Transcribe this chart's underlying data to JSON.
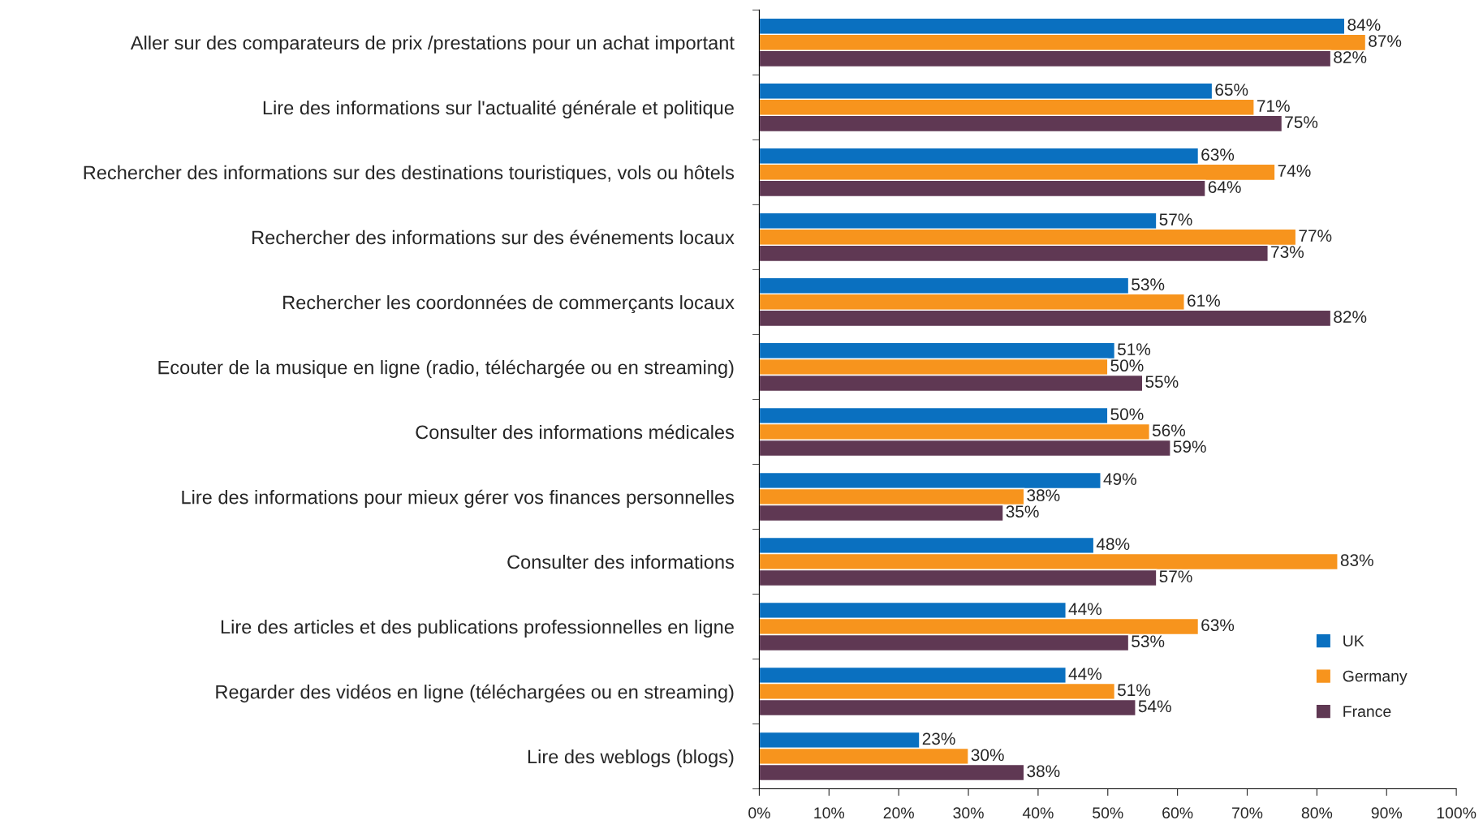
{
  "chart_data": {
    "type": "bar",
    "orientation": "horizontal",
    "categories": [
      "Aller sur des comparateurs de prix /prestations pour un achat important",
      "Lire des informations sur l'actualité générale et politique",
      "Rechercher des informations sur des destinations touristiques, vols ou hôtels",
      "Rechercher des informations sur des événements locaux",
      "Rechercher les coordonnées de commerçants locaux",
      "Ecouter de la musique en ligne (radio, téléchargée ou en streaming)",
      "Consulter des informations médicales",
      "Lire des informations pour mieux gérer vos finances personnelles",
      "Consulter des informations",
      "Lire des articles et des publications professionnelles en ligne",
      "Regarder des vidéos en ligne (téléchargées ou en streaming)",
      "Lire des weblogs (blogs)"
    ],
    "series": [
      {
        "name": "UK",
        "color": "#0a70c0",
        "values": [
          84,
          65,
          63,
          57,
          53,
          51,
          50,
          49,
          48,
          44,
          44,
          23
        ],
        "value_labels": [
          "84%",
          "65%",
          "63%",
          "57%",
          "53%",
          "51%",
          "50%",
          "49%",
          "48%",
          "44%",
          "44%",
          "23%"
        ]
      },
      {
        "name": "Germany",
        "color": "#f7941d",
        "values": [
          87,
          71,
          74,
          77,
          61,
          50,
          56,
          38,
          83,
          63,
          51,
          30
        ],
        "value_labels": [
          "87%",
          "71%",
          "74%",
          "77%",
          "61%",
          "50%",
          "56%",
          "38%",
          "83%",
          "63%",
          "51%",
          "30%"
        ]
      },
      {
        "name": "France",
        "color": "#5f3853",
        "values": [
          82,
          75,
          64,
          73,
          82,
          55,
          59,
          35,
          57,
          53,
          54,
          38
        ],
        "value_labels": [
          "82%",
          "75%",
          "64%",
          "73%",
          "82%",
          "55%",
          "59%",
          "35%",
          "57%",
          "53%",
          "54%",
          "38%"
        ]
      }
    ],
    "xlim": [
      0,
      100
    ],
    "xticks": [
      {
        "value": 0,
        "label": "0%"
      },
      {
        "value": 10,
        "label": "10%"
      },
      {
        "value": 20,
        "label": "20%"
      },
      {
        "value": 30,
        "label": "30%"
      },
      {
        "value": 40,
        "label": "40%"
      },
      {
        "value": 50,
        "label": "50%"
      },
      {
        "value": 60,
        "label": "60%"
      },
      {
        "value": 70,
        "label": "70%"
      },
      {
        "value": 80,
        "label": "80%"
      },
      {
        "value": 90,
        "label": "90%"
      },
      {
        "value": 100,
        "label": "100%"
      }
    ],
    "grid": false,
    "legend": "bottom right"
  }
}
